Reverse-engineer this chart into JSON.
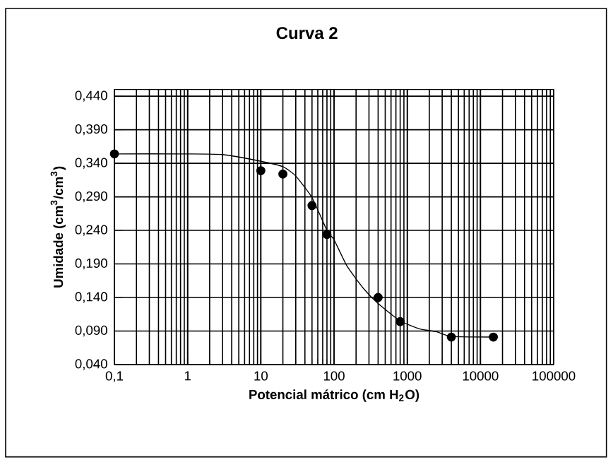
{
  "chart_data": {
    "type": "scatter",
    "title": "Curva 2",
    "xlabel": "Potencial mátrico  (cm H$_{2}$O)",
    "ylabel": "Umidade (cm$^{3}$/cm$^{3}$)",
    "log": "x",
    "grid": true,
    "marker": "circle",
    "xlim": [
      0.1,
      100000
    ],
    "ylim": [
      0.04,
      0.45
    ],
    "xticks": [
      {
        "value": 0.1,
        "label": "0,1"
      },
      1,
      10,
      100,
      1000,
      10000,
      100000
    ],
    "yticks": [
      {
        "value": 0.04,
        "label": "0,040"
      },
      {
        "value": 0.09,
        "label": "0,090"
      },
      {
        "value": 0.14,
        "label": "0,140"
      },
      {
        "value": 0.19,
        "label": "0,190"
      },
      {
        "value": 0.24,
        "label": "0,240"
      },
      {
        "value": 0.29,
        "label": "0,290"
      },
      {
        "value": 0.34,
        "label": "0,340"
      },
      {
        "value": 0.39,
        "label": "0,390"
      },
      {
        "value": 0.44,
        "label": "0,440"
      }
    ],
    "series": [
      {
        "type": "line",
        "marker": "none",
        "color": "#000000",
        "x": [
          0.1,
          1,
          3,
          10,
          20,
          30,
          50,
          80,
          100,
          150,
          250,
          400,
          800,
          1500,
          2500,
          4000,
          15000
        ],
        "values": [
          0.354,
          0.354,
          0.353,
          0.343,
          0.335,
          0.321,
          0.289,
          0.24,
          0.226,
          0.187,
          0.154,
          0.131,
          0.105,
          0.093,
          0.089,
          0.082,
          0.081
        ]
      },
      {
        "color": "#000000",
        "x": [
          0.1,
          10,
          20,
          50,
          80,
          400,
          800,
          4000,
          15000
        ],
        "values": [
          0.354,
          0.329,
          0.324,
          0.277,
          0.234,
          0.14,
          0.104,
          0.081,
          0.081
        ]
      }
    ]
  }
}
